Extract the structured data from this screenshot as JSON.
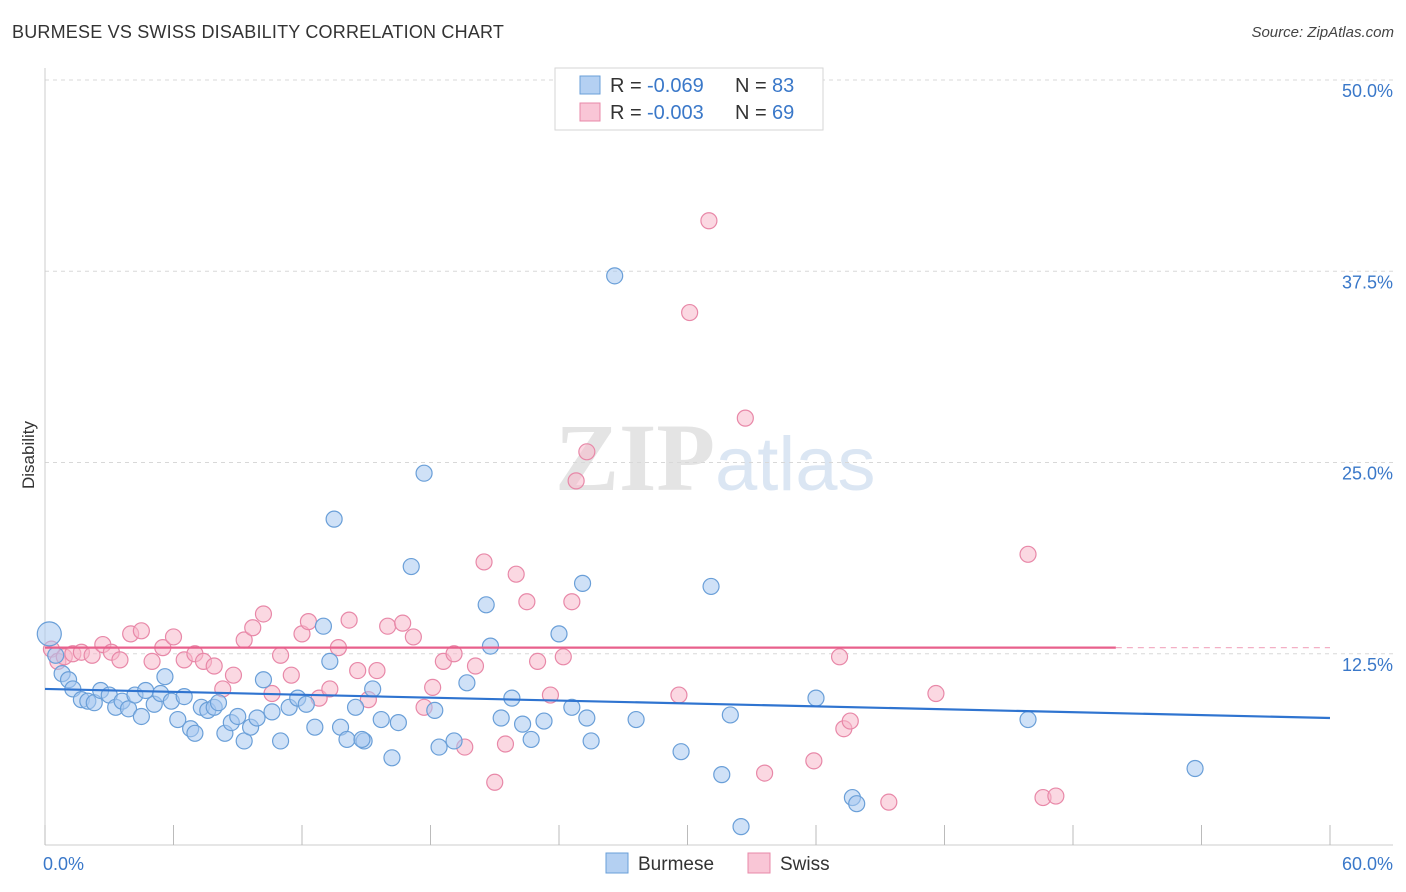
{
  "header": {
    "title": "BURMESE VS SWISS DISABILITY CORRELATION CHART",
    "source": "Source: ZipAtlas.com"
  },
  "watermark": {
    "zip": "ZIP",
    "atlas": "atlas"
  },
  "legend": {
    "rows": [
      {
        "r_label": "R = ",
        "r_value": "-0.069",
        "n_label": "N = ",
        "n_value": "83"
      },
      {
        "r_label": "R = ",
        "r_value": "-0.003",
        "n_label": "N = ",
        "n_value": "69"
      }
    ]
  },
  "colors": {
    "burmese_fill": "#a8c8f0",
    "burmese_stroke": "#6a9fd8",
    "burmese_line": "#2f74d0",
    "swiss_fill": "#f7b8cb",
    "swiss_stroke": "#e888a8",
    "swiss_line": "#e8608c",
    "grid": "#d8d8d8",
    "tick_text": "#3a78c9"
  },
  "chart_data": {
    "type": "scatter",
    "title": "BURMESE VS SWISS DISABILITY CORRELATION CHART",
    "ylabel": "Disability",
    "xlabel": "",
    "xlim": [
      0,
      60
    ],
    "ylim": [
      0,
      50
    ],
    "x_ticks": [
      {
        "value": 0,
        "label": "0.0%"
      },
      {
        "value": 60,
        "label": "60.0%"
      }
    ],
    "y_ticks": [
      {
        "value": 12.5,
        "label": "12.5%"
      },
      {
        "value": 25,
        "label": "25.0%"
      },
      {
        "value": 37.5,
        "label": "37.5%"
      },
      {
        "value": 50,
        "label": "50.0%"
      }
    ],
    "grid": "horizontal dashed",
    "legend_position": "top-center and bottom",
    "series": [
      {
        "name": "Burmese",
        "r": -0.069,
        "n": 83,
        "trend": {
          "x": [
            0,
            60
          ],
          "y": [
            10.2,
            8.3
          ]
        },
        "points": [
          [
            0.2,
            13.8
          ],
          [
            0.5,
            12.4
          ],
          [
            0.8,
            11.2
          ],
          [
            1.1,
            10.8
          ],
          [
            1.3,
            10.2
          ],
          [
            1.7,
            9.5
          ],
          [
            2.0,
            9.4
          ],
          [
            2.3,
            9.3
          ],
          [
            2.6,
            10.1
          ],
          [
            3.0,
            9.8
          ],
          [
            3.3,
            9.0
          ],
          [
            3.6,
            9.4
          ],
          [
            3.9,
            8.9
          ],
          [
            4.2,
            9.8
          ],
          [
            4.5,
            8.4
          ],
          [
            4.7,
            10.1
          ],
          [
            5.1,
            9.2
          ],
          [
            5.4,
            9.9
          ],
          [
            5.6,
            11.0
          ],
          [
            5.9,
            9.4
          ],
          [
            6.2,
            8.2
          ],
          [
            6.5,
            9.7
          ],
          [
            6.8,
            7.6
          ],
          [
            7.0,
            7.3
          ],
          [
            7.3,
            9.0
          ],
          [
            7.6,
            8.8
          ],
          [
            7.9,
            9.0
          ],
          [
            8.1,
            9.3
          ],
          [
            8.4,
            7.3
          ],
          [
            8.7,
            8.0
          ],
          [
            9.0,
            8.4
          ],
          [
            9.3,
            6.8
          ],
          [
            9.6,
            7.7
          ],
          [
            9.9,
            8.3
          ],
          [
            10.2,
            10.8
          ],
          [
            10.6,
            8.7
          ],
          [
            11.0,
            6.8
          ],
          [
            11.4,
            9.0
          ],
          [
            11.8,
            9.6
          ],
          [
            12.2,
            9.2
          ],
          [
            12.6,
            7.7
          ],
          [
            13.0,
            14.3
          ],
          [
            13.3,
            12.0
          ],
          [
            13.8,
            7.7
          ],
          [
            14.1,
            6.9
          ],
          [
            14.5,
            9.0
          ],
          [
            14.9,
            6.8
          ],
          [
            15.3,
            10.2
          ],
          [
            15.7,
            8.2
          ],
          [
            16.2,
            5.7
          ],
          [
            16.5,
            8.0
          ],
          [
            14.8,
            6.9
          ],
          [
            13.5,
            21.3
          ],
          [
            17.1,
            18.2
          ],
          [
            17.7,
            24.3
          ],
          [
            18.4,
            6.4
          ],
          [
            19.1,
            6.8
          ],
          [
            19.7,
            10.6
          ],
          [
            20.6,
            15.7
          ],
          [
            20.8,
            13.0
          ],
          [
            21.3,
            8.3
          ],
          [
            21.8,
            9.6
          ],
          [
            22.3,
            7.9
          ],
          [
            22.7,
            6.9
          ],
          [
            23.3,
            8.1
          ],
          [
            24.0,
            13.8
          ],
          [
            24.6,
            9.0
          ],
          [
            25.1,
            17.1
          ],
          [
            25.3,
            8.3
          ],
          [
            25.5,
            6.8
          ],
          [
            26.6,
            37.2
          ],
          [
            29.7,
            6.1
          ],
          [
            31.1,
            16.9
          ],
          [
            31.6,
            4.6
          ],
          [
            32.5,
            1.2
          ],
          [
            37.7,
            3.1
          ],
          [
            37.9,
            2.7
          ],
          [
            45.9,
            8.2
          ],
          [
            53.7,
            5.0
          ],
          [
            32.0,
            8.5
          ],
          [
            36.0,
            9.6
          ],
          [
            27.6,
            8.2
          ],
          [
            18.2,
            8.8
          ]
        ]
      },
      {
        "name": "Swiss",
        "r": -0.003,
        "n": 69,
        "trend": {
          "x": [
            0,
            50
          ],
          "y": [
            12.9,
            12.9
          ]
        },
        "points": [
          [
            0.3,
            12.8
          ],
          [
            0.6,
            12.0
          ],
          [
            0.9,
            12.3
          ],
          [
            1.3,
            12.5
          ],
          [
            1.7,
            12.6
          ],
          [
            2.2,
            12.4
          ],
          [
            2.7,
            13.1
          ],
          [
            3.1,
            12.6
          ],
          [
            3.5,
            12.1
          ],
          [
            4.0,
            13.8
          ],
          [
            4.5,
            14.0
          ],
          [
            5.0,
            12.0
          ],
          [
            5.5,
            12.9
          ],
          [
            6.0,
            13.6
          ],
          [
            6.5,
            12.1
          ],
          [
            7.0,
            12.5
          ],
          [
            7.4,
            12.0
          ],
          [
            7.9,
            11.7
          ],
          [
            8.3,
            10.2
          ],
          [
            8.8,
            11.1
          ],
          [
            9.3,
            13.4
          ],
          [
            9.7,
            14.2
          ],
          [
            10.2,
            15.1
          ],
          [
            10.6,
            9.9
          ],
          [
            11.0,
            12.4
          ],
          [
            11.5,
            11.1
          ],
          [
            12.0,
            13.8
          ],
          [
            12.3,
            14.6
          ],
          [
            12.8,
            9.6
          ],
          [
            13.3,
            10.2
          ],
          [
            13.7,
            12.9
          ],
          [
            14.2,
            14.7
          ],
          [
            14.6,
            11.4
          ],
          [
            15.1,
            9.5
          ],
          [
            15.5,
            11.4
          ],
          [
            16.0,
            14.3
          ],
          [
            16.7,
            14.5
          ],
          [
            17.2,
            13.6
          ],
          [
            17.7,
            9.0
          ],
          [
            18.1,
            10.3
          ],
          [
            18.6,
            12.0
          ],
          [
            19.1,
            12.5
          ],
          [
            19.6,
            6.4
          ],
          [
            20.1,
            11.7
          ],
          [
            20.5,
            18.5
          ],
          [
            21.0,
            4.1
          ],
          [
            21.5,
            6.6
          ],
          [
            22.0,
            17.7
          ],
          [
            22.5,
            15.9
          ],
          [
            23.0,
            12.0
          ],
          [
            23.6,
            9.8
          ],
          [
            24.2,
            12.3
          ],
          [
            24.6,
            15.9
          ],
          [
            25.3,
            25.7
          ],
          [
            24.8,
            23.8
          ],
          [
            29.6,
            9.8
          ],
          [
            30.1,
            34.8
          ],
          [
            31.0,
            40.8
          ],
          [
            32.7,
            27.9
          ],
          [
            33.6,
            4.7
          ],
          [
            35.9,
            5.5
          ],
          [
            37.1,
            12.3
          ],
          [
            37.3,
            7.6
          ],
          [
            37.6,
            8.1
          ],
          [
            39.4,
            2.8
          ],
          [
            41.6,
            9.9
          ],
          [
            45.9,
            19.0
          ],
          [
            46.6,
            3.1
          ],
          [
            47.2,
            3.2
          ]
        ]
      }
    ]
  },
  "bottom_legend": {
    "items": [
      "Burmese",
      "Swiss"
    ]
  }
}
